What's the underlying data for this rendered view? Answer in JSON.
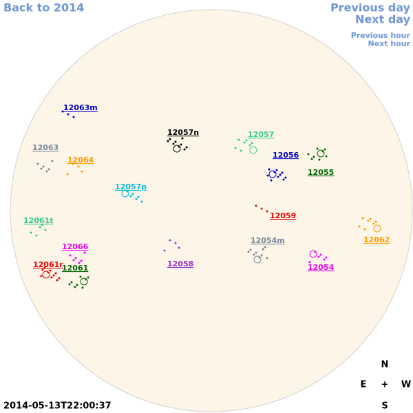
{
  "nav": {
    "back": "Back to 2014",
    "previous_day": "Previous day",
    "next_day": "Next day",
    "previous_hour": "Previous hour",
    "next_hour": "Next hour"
  },
  "regions": [
    {
      "label": "12063m",
      "color": "#0000cc"
    },
    {
      "label": "12057n",
      "color": "#000000"
    },
    {
      "label": "12057",
      "color": "#33cc88"
    },
    {
      "label": "12063",
      "color": "#778899"
    },
    {
      "label": "12064",
      "color": "#ff9900"
    },
    {
      "label": "12056",
      "color": "#0000cc"
    },
    {
      "label": "12055",
      "color": "#006600"
    },
    {
      "label": "12057p",
      "color": "#00bbdd"
    },
    {
      "label": "12061t",
      "color": "#33cc88"
    },
    {
      "label": "12059",
      "color": "#ee0000"
    },
    {
      "label": "12054m",
      "color": "#778899"
    },
    {
      "label": "12062",
      "color": "#ff9900"
    },
    {
      "label": "12066",
      "color": "#ee00ee"
    },
    {
      "label": "12058",
      "color": "#9933cc"
    },
    {
      "label": "12061r",
      "color": "#ee0000"
    },
    {
      "label": "12061",
      "color": "#006600"
    },
    {
      "label": "12054",
      "color": "#ee00ee"
    }
  ],
  "compass": {
    "north": "N",
    "east": "E",
    "center": "+",
    "west": "W",
    "south": "S"
  },
  "timestamp": "2014-05-13T22:00:37"
}
